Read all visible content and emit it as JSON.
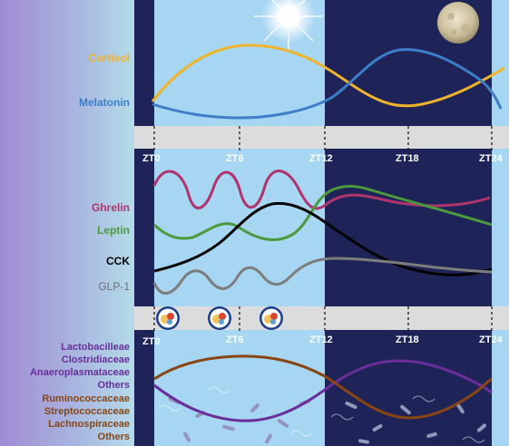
{
  "hormones_top": {
    "cortisol": {
      "label": "Cortisol",
      "color": "#f0b42c"
    },
    "melatonin": {
      "label": "Melatonin",
      "color": "#3d7ec9"
    }
  },
  "hormones_mid": {
    "ghrelin": {
      "label": "Ghrelin",
      "color": "#b0346e"
    },
    "leptin": {
      "label": "Leptin",
      "color": "#4b9a3c"
    },
    "cck": {
      "label": "CCK",
      "color": "#000000"
    },
    "glp1": {
      "label": "GLP-1",
      "color": "#7d7d7d"
    }
  },
  "microbes": {
    "group1": [
      "Lactobacilleae",
      "Clostridiaceae",
      "Anaeroplasmataceae",
      "Others"
    ],
    "group1_color": "#6a2e9a",
    "group2": [
      "Ruminococcaceae",
      "Streptococcaceae",
      "Lachnospiraceae",
      "Others"
    ],
    "group2_color": "#8a4512"
  },
  "timeline_top": [
    "ZT0",
    "ZT6",
    "ZT12",
    "ZT18",
    "ZT24"
  ],
  "timeline_bottom": [
    "ZT0",
    "ZT6",
    "ZT12",
    "ZT18",
    "ZT24"
  ],
  "icons": {
    "sun": "sun-icon",
    "moon": "moon-icon",
    "meal": "meal-icon"
  },
  "colors": {
    "day": "#a6d6f2",
    "night": "#1e2458",
    "bar": "#dcdcdc"
  }
}
